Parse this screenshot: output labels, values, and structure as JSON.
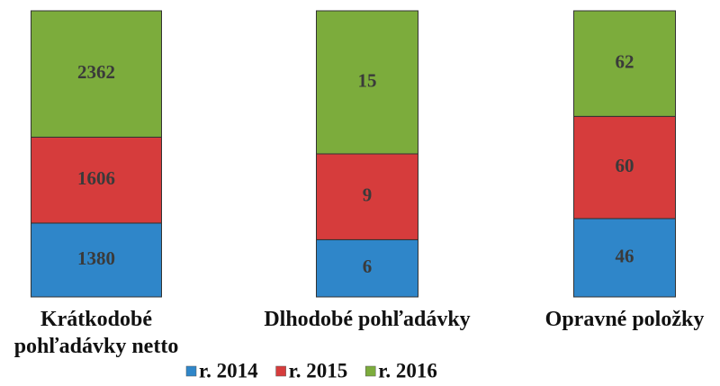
{
  "chart_data": {
    "type": "bar",
    "stacked": "percent",
    "categories": [
      "Krátkodobé pohľadávky netto",
      "Dlhodobé pohľadávky",
      "Opravné položky"
    ],
    "series": [
      {
        "name": "r. 2014",
        "color": "#2f86c9",
        "values": [
          1380,
          6,
          46
        ]
      },
      {
        "name": "r. 2015",
        "color": "#d63c3c",
        "values": [
          1606,
          9,
          60
        ]
      },
      {
        "name": "r. 2016",
        "color": "#7cac3c",
        "values": [
          2362,
          15,
          62
        ]
      }
    ],
    "legend": "bottom"
  }
}
